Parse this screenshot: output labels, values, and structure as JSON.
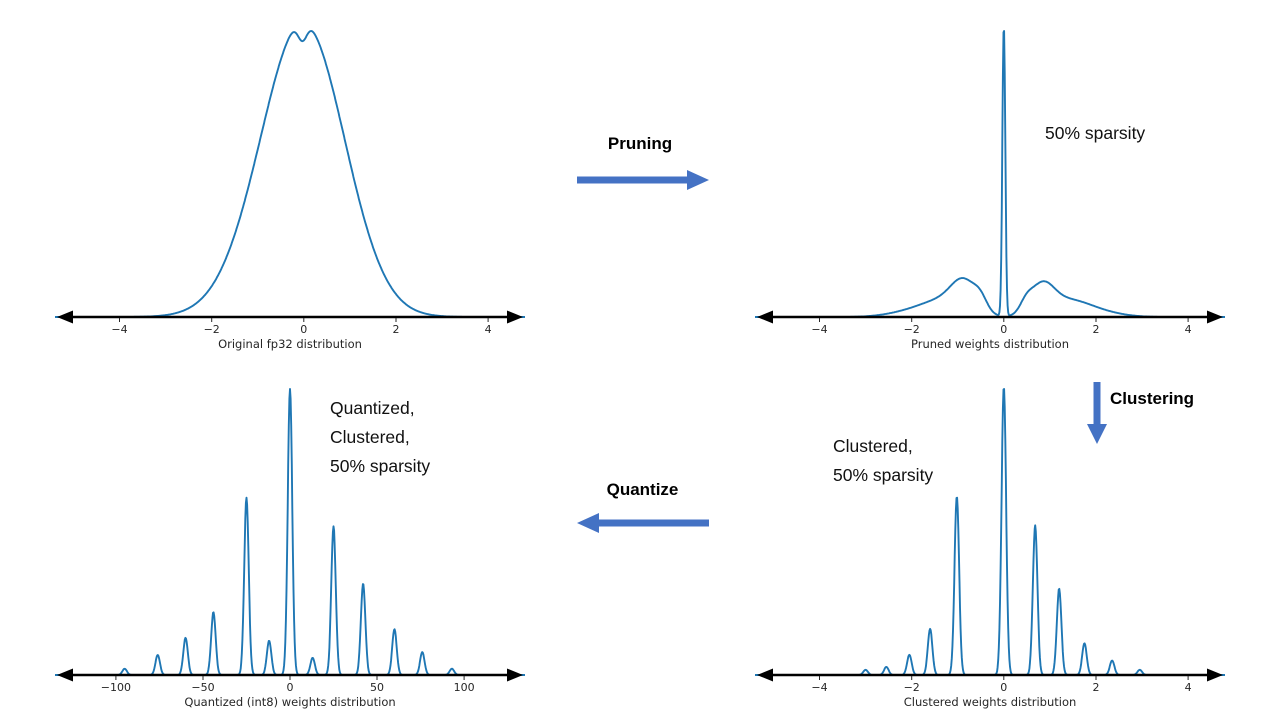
{
  "colors": {
    "curve": "#1f77b4",
    "axis": "#000000",
    "arrow": "#4472c4",
    "tick_text": "#262626"
  },
  "flow": {
    "pruning_label": "Pruning",
    "clustering_label": "Clustering",
    "quantize_label": "Quantize"
  },
  "annotations": {
    "pruned_sparsity": "50% sparsity",
    "clustered_lines": [
      "Clustered,",
      "50% sparsity"
    ],
    "quantized_lines": [
      "Quantized,",
      "Clustered,",
      "50% sparsity"
    ]
  },
  "chart_data": [
    {
      "id": "original-fp32",
      "type": "line",
      "title": "Original fp32 distribution",
      "xlim": [
        -5.4,
        4.8
      ],
      "ylim": [
        0,
        1.05
      ],
      "grid": false,
      "yaxis": "hidden",
      "xticks": [
        {
          "v": -4,
          "label": "−4"
        },
        {
          "v": -2,
          "label": "−2"
        },
        {
          "v": 0,
          "label": "0"
        },
        {
          "v": 2,
          "label": "2"
        },
        {
          "v": 4,
          "label": "4"
        }
      ],
      "components": [
        {
          "center": -0.25,
          "height": 0.97,
          "width": 0.92
        },
        {
          "center": 0.18,
          "height": 0.94,
          "width": 0.85
        },
        {
          "center": -0.03,
          "height": -0.12,
          "width": 0.1
        }
      ]
    },
    {
      "id": "pruned-weights",
      "type": "line",
      "title": "Pruned weights distribution",
      "xlim": [
        -5.4,
        4.8
      ],
      "ylim": [
        0,
        1.05
      ],
      "grid": false,
      "yaxis": "hidden",
      "xticks": [
        {
          "v": -4,
          "label": "−4"
        },
        {
          "v": -2,
          "label": "−2"
        },
        {
          "v": 0,
          "label": "0"
        },
        {
          "v": 2,
          "label": "2"
        },
        {
          "v": 4,
          "label": "4"
        }
      ],
      "components": [
        {
          "center": 0,
          "height": 1.0,
          "width": 0.032
        },
        {
          "center": -0.85,
          "height": 0.1,
          "width": 0.28
        },
        {
          "center": 0.82,
          "height": 0.095,
          "width": 0.26
        },
        {
          "center": -1.3,
          "height": 0.05,
          "width": 0.45
        },
        {
          "center": 1.35,
          "height": 0.05,
          "width": 0.45
        },
        {
          "center": -0.5,
          "height": 0.035,
          "width": 0.14
        },
        {
          "center": 0.48,
          "height": 0.03,
          "width": 0.13
        },
        {
          "center": -2.0,
          "height": 0.018,
          "width": 0.5
        },
        {
          "center": 2.0,
          "height": 0.018,
          "width": 0.5
        }
      ]
    },
    {
      "id": "clustered-weights",
      "type": "line",
      "title": "Clustered weights distribution",
      "xlim": [
        -5.4,
        4.8
      ],
      "ylim": [
        0,
        1.05
      ],
      "grid": false,
      "yaxis": "hidden",
      "xticks": [
        {
          "v": -4,
          "label": "−4"
        },
        {
          "v": -2,
          "label": "−2"
        },
        {
          "v": 0,
          "label": "0"
        },
        {
          "v": 2,
          "label": "2"
        },
        {
          "v": 4,
          "label": "4"
        }
      ],
      "components": [
        {
          "center": -3.0,
          "height": 0.018,
          "width": 0.05
        },
        {
          "center": -2.55,
          "height": 0.028,
          "width": 0.05
        },
        {
          "center": -2.05,
          "height": 0.07,
          "width": 0.05
        },
        {
          "center": -1.6,
          "height": 0.16,
          "width": 0.05
        },
        {
          "center": -1.02,
          "height": 0.62,
          "width": 0.05
        },
        {
          "center": 0.0,
          "height": 1.0,
          "width": 0.05
        },
        {
          "center": 0.68,
          "height": 0.52,
          "width": 0.05
        },
        {
          "center": 1.2,
          "height": 0.3,
          "width": 0.05
        },
        {
          "center": 1.75,
          "height": 0.11,
          "width": 0.05
        },
        {
          "center": 2.35,
          "height": 0.05,
          "width": 0.05
        },
        {
          "center": 2.95,
          "height": 0.018,
          "width": 0.05
        }
      ]
    },
    {
      "id": "quantized-int8-weights",
      "type": "line",
      "title": "Quantized (int8) weights distribution",
      "xlim": [
        -135,
        135
      ],
      "ylim": [
        0,
        1.05
      ],
      "grid": false,
      "yaxis": "hidden",
      "xticks": [
        {
          "v": -100,
          "label": "−100"
        },
        {
          "v": -50,
          "label": "−50"
        },
        {
          "v": 0,
          "label": "0"
        },
        {
          "v": 50,
          "label": "50"
        },
        {
          "v": 100,
          "label": "100"
        }
      ],
      "components": [
        {
          "center": -95,
          "height": 0.022,
          "width": 1.3
        },
        {
          "center": -76,
          "height": 0.07,
          "width": 1.3
        },
        {
          "center": -60,
          "height": 0.13,
          "width": 1.3
        },
        {
          "center": -44,
          "height": 0.22,
          "width": 1.3
        },
        {
          "center": -25,
          "height": 0.62,
          "width": 1.3
        },
        {
          "center": -12,
          "height": 0.12,
          "width": 1.3
        },
        {
          "center": 0,
          "height": 1.0,
          "width": 1.3
        },
        {
          "center": 13,
          "height": 0.06,
          "width": 1.3
        },
        {
          "center": 25,
          "height": 0.52,
          "width": 1.3
        },
        {
          "center": 42,
          "height": 0.32,
          "width": 1.3
        },
        {
          "center": 60,
          "height": 0.16,
          "width": 1.3
        },
        {
          "center": 76,
          "height": 0.08,
          "width": 1.3
        },
        {
          "center": 93,
          "height": 0.022,
          "width": 1.3
        }
      ]
    }
  ]
}
